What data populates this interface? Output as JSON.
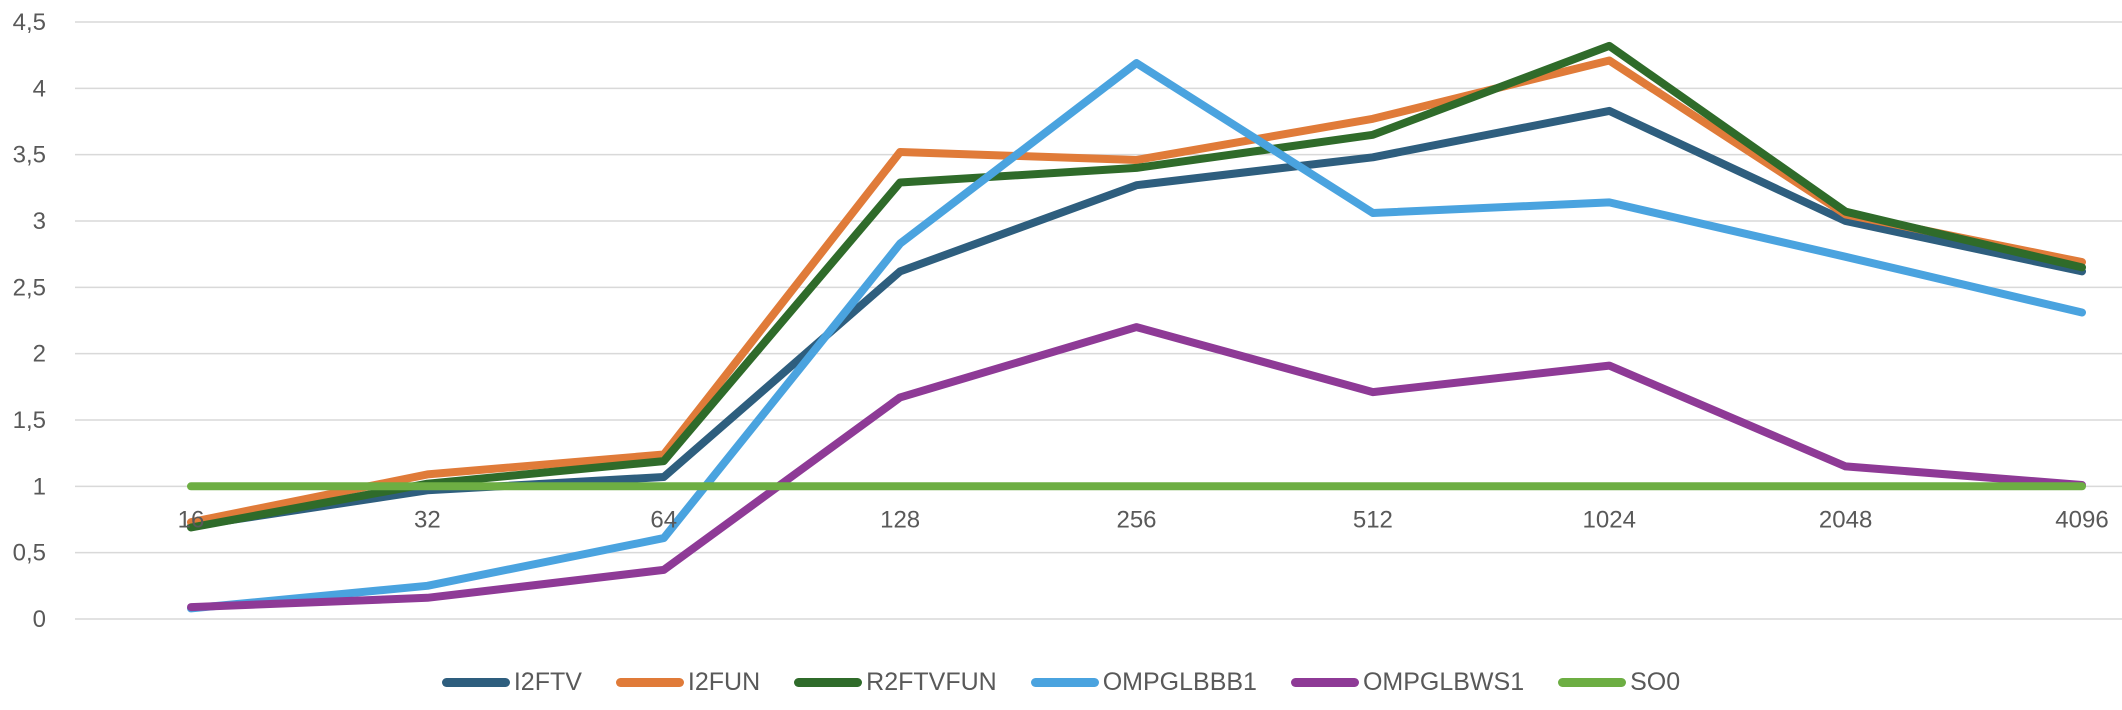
{
  "chart_data": {
    "type": "line",
    "title": "",
    "xlabel": "",
    "ylabel": "",
    "categories": [
      "16",
      "32",
      "64",
      "128",
      "256",
      "512",
      "1024",
      "2048",
      "4096"
    ],
    "y_tick_labels": [
      "0",
      "0,5",
      "1",
      "1,5",
      "2",
      "2,5",
      "3",
      "3,5",
      "4",
      "4,5"
    ],
    "ylim": [
      0,
      4.5
    ],
    "grid": true,
    "legend_position": "bottom",
    "series": [
      {
        "name": "I2FTV",
        "color": "#2E5E7E",
        "values": [
          0.7,
          0.97,
          1.07,
          2.62,
          3.27,
          3.48,
          3.83,
          3.0,
          2.62
        ]
      },
      {
        "name": "I2FUN",
        "color": "#E07B39",
        "values": [
          0.73,
          1.09,
          1.24,
          3.52,
          3.46,
          3.77,
          4.21,
          3.05,
          2.69
        ]
      },
      {
        "name": "R2FTVFUN",
        "color": "#2F6B2A",
        "values": [
          0.69,
          1.02,
          1.19,
          3.29,
          3.4,
          3.65,
          4.32,
          3.07,
          2.65
        ]
      },
      {
        "name": "OMPGLBBB1",
        "color": "#4AA3DF",
        "values": [
          0.08,
          0.25,
          0.61,
          2.83,
          4.19,
          3.06,
          3.14,
          2.73,
          2.31
        ]
      },
      {
        "name": "OMPGLBWS1",
        "color": "#8E3A96",
        "values": [
          0.09,
          0.16,
          0.37,
          1.67,
          2.2,
          1.71,
          1.91,
          1.15,
          1.01
        ]
      },
      {
        "name": "SO0",
        "color": "#6DAE43",
        "values": [
          1,
          1,
          1,
          1,
          1,
          1,
          1,
          1,
          1
        ]
      }
    ]
  }
}
